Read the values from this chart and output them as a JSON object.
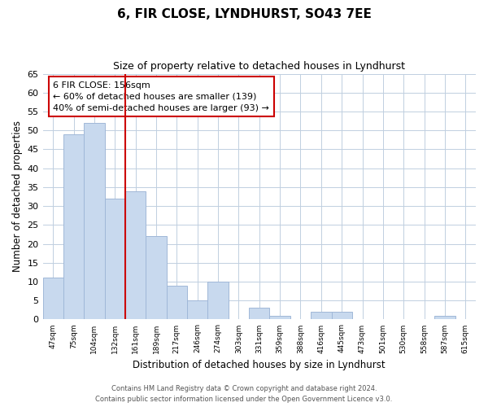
{
  "title": "6, FIR CLOSE, LYNDHURST, SO43 7EE",
  "subtitle": "Size of property relative to detached houses in Lyndhurst",
  "xlabel": "Distribution of detached houses by size in Lyndhurst",
  "ylabel": "Number of detached properties",
  "categories": [
    "47sqm",
    "75sqm",
    "104sqm",
    "132sqm",
    "161sqm",
    "189sqm",
    "217sqm",
    "246sqm",
    "274sqm",
    "303sqm",
    "331sqm",
    "359sqm",
    "388sqm",
    "416sqm",
    "445sqm",
    "473sqm",
    "501sqm",
    "530sqm",
    "558sqm",
    "587sqm",
    "615sqm"
  ],
  "values": [
    11,
    49,
    52,
    32,
    34,
    22,
    9,
    5,
    10,
    0,
    3,
    1,
    0,
    2,
    2,
    0,
    0,
    0,
    0,
    1,
    0
  ],
  "bar_color": "#c8d9ee",
  "bar_edge_color": "#a0b8d8",
  "highlight_line_index": 4,
  "highlight_line_color": "#cc0000",
  "annotation_box_text": "6 FIR CLOSE: 156sqm\n← 60% of detached houses are smaller (139)\n40% of semi-detached houses are larger (93) →",
  "annotation_box_color": "#cc0000",
  "ylim": [
    0,
    65
  ],
  "yticks": [
    0,
    5,
    10,
    15,
    20,
    25,
    30,
    35,
    40,
    45,
    50,
    55,
    60,
    65
  ],
  "footer_line1": "Contains HM Land Registry data © Crown copyright and database right 2024.",
  "footer_line2": "Contains public sector information licensed under the Open Government Licence v3.0.",
  "background_color": "#ffffff",
  "grid_color": "#c0cfe0"
}
